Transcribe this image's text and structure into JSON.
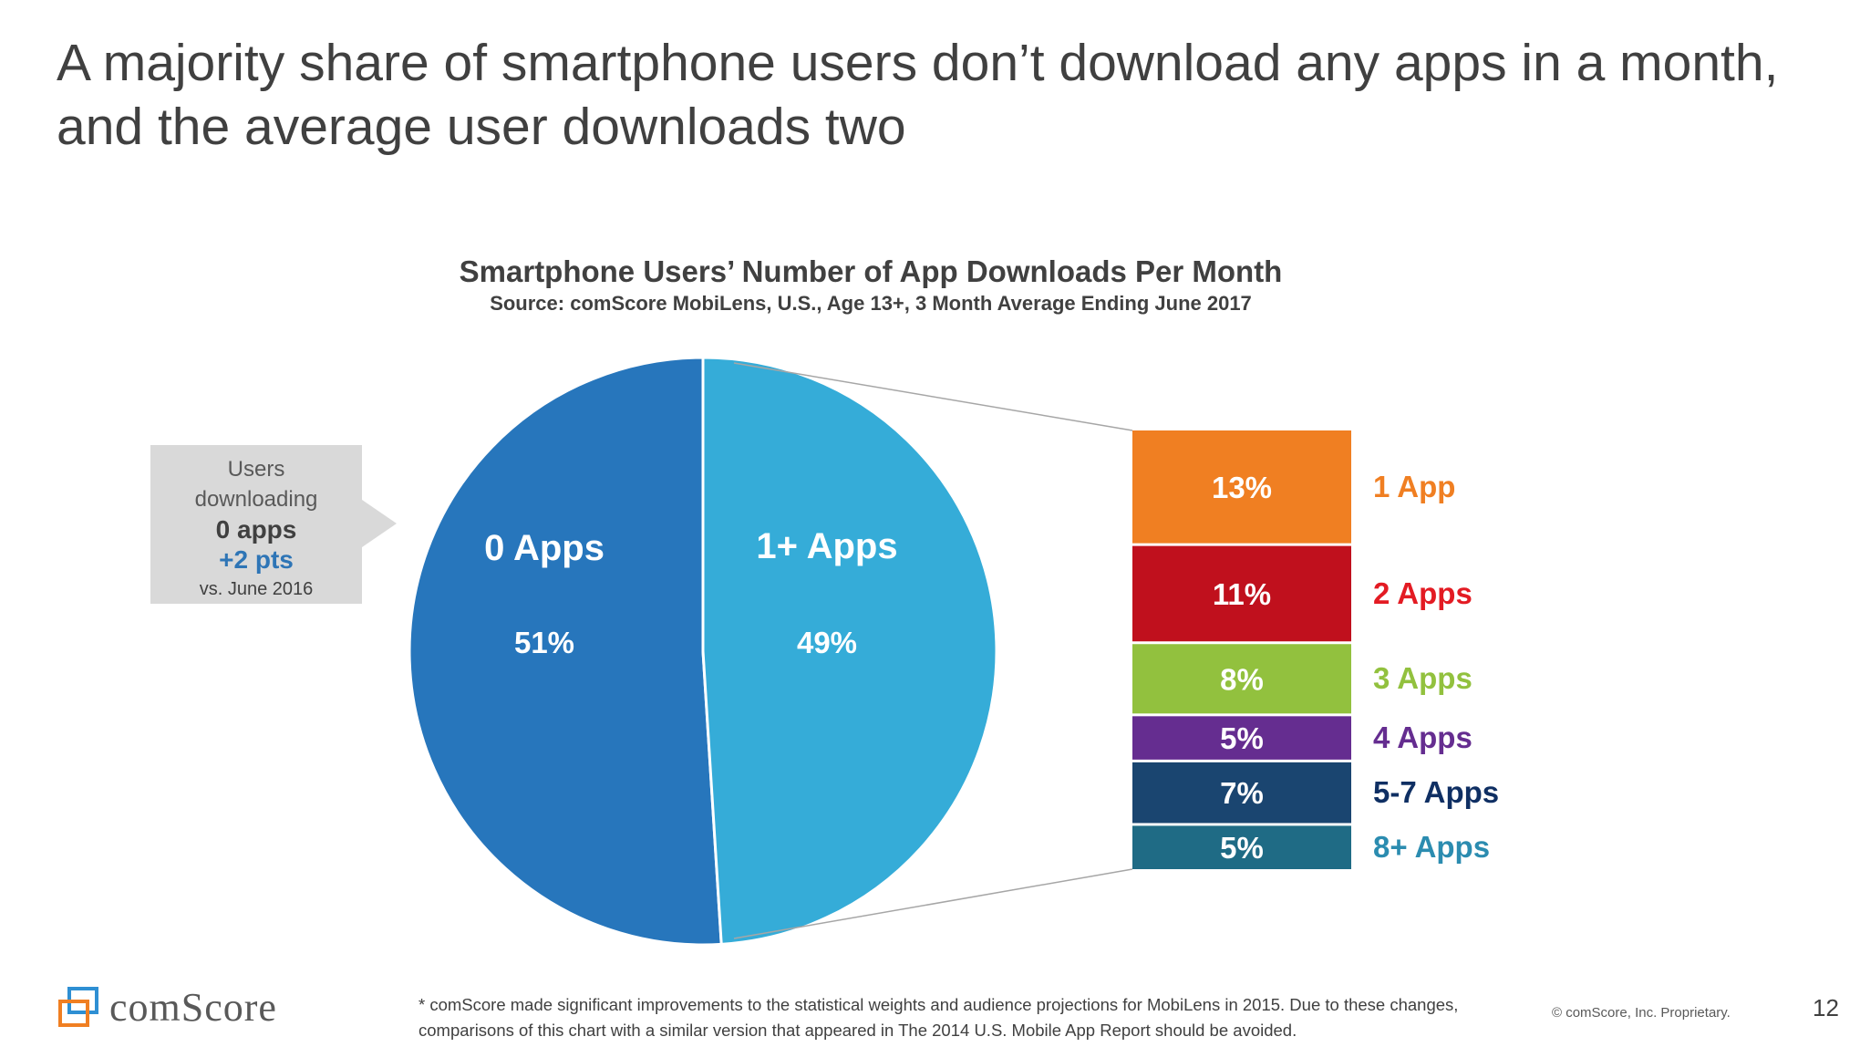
{
  "headline": "A majority share of smartphone users don’t download any apps in a month, and the average user downloads two",
  "chart_data": {
    "type": "pie",
    "title": "Smartphone Users’ Number of App Downloads Per Month",
    "subtitle": "Source: comScore MobiLens, U.S., Age 13+, 3 Month Average Ending June 2017",
    "slices": [
      {
        "name": "0 Apps",
        "value": 51,
        "label": "51%",
        "color": "#2776bc"
      },
      {
        "name": "1+ Apps",
        "value": 49,
        "label": "49%",
        "color": "#35acd8"
      }
    ],
    "breakdown": {
      "type": "stacked-bar",
      "of": "1+ Apps",
      "segments": [
        {
          "name": "1 App",
          "value": 13,
          "label": "13%",
          "color": "#f07f22",
          "text_color": "#f07f22"
        },
        {
          "name": "2 Apps",
          "value": 11,
          "label": "11%",
          "color": "#c0101d",
          "text_color": "#e31b23"
        },
        {
          "name": "3 Apps",
          "value": 8,
          "label": "8%",
          "color": "#92c13e",
          "text_color": "#92c13e"
        },
        {
          "name": "4 Apps",
          "value": 5,
          "label": "5%",
          "color": "#652d90",
          "text_color": "#652d90"
        },
        {
          "name": "5-7 Apps",
          "value": 7,
          "label": "7%",
          "color": "#1a4570",
          "text_color": "#0f2f63"
        },
        {
          "name": "8+ Apps",
          "value": 5,
          "label": "5%",
          "color": "#1f6b85",
          "text_color": "#2b8cb0"
        }
      ]
    }
  },
  "callout": {
    "line1": "Users",
    "line2": "downloading",
    "line3": "0 apps",
    "line4": "+2 pts",
    "line5": "vs. June 2016"
  },
  "footer": {
    "footnote_line1": "* comScore made significant improvements to the statistical weights and audience projections for MobiLens in 2015. Due to these changes,",
    "footnote_line2": "comparisons of this chart with a similar version that appeared in The 2014 U.S. Mobile App Report should be avoided.",
    "copyright": "© comScore, Inc. Proprietary.",
    "page_number": "12",
    "logo_text": "comScore"
  }
}
